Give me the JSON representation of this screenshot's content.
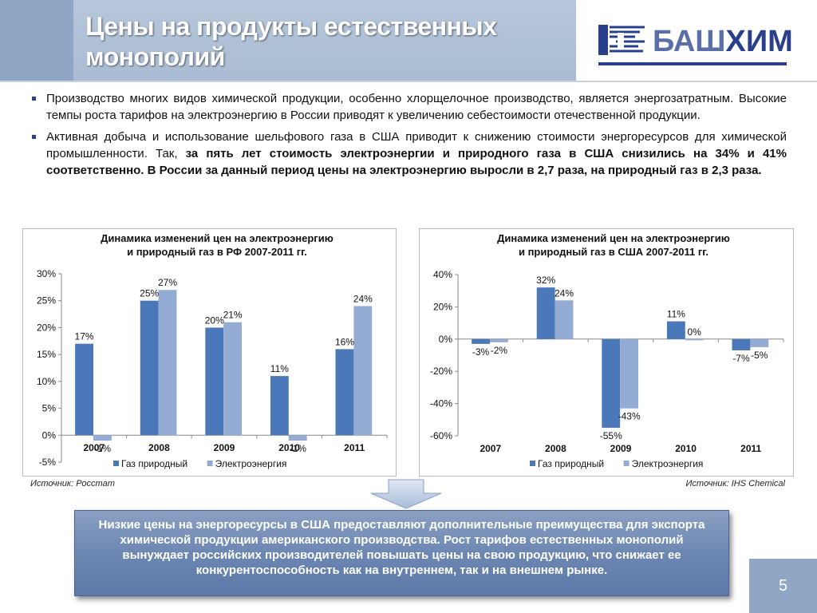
{
  "header": {
    "title": "Цены на продукты естественных монополий",
    "logo_text_part1": "БАШ",
    "logo_text_part2": "ХИМ"
  },
  "bullets": {
    "p1": "Производство многих видов химической продукции, особенно хлорщелочное производство, является энергозатратным. Высокие темпы роста тарифов на электроэнергию в России приводят к увеличению себестоимости отечественной продукции.",
    "p2_normal": "Активная добыча и использование шельфового газа в США приводит к снижению стоимости энергоресурсов для химической промышленности. Так, ",
    "p2_bold": "за пять лет стоимость электроэнергии и природного газа в США снизились на 34% и 41% соответственно. В России за данный период цены на электроэнергию выросли в 2,7 раза, на природный газ в 2,3 раза."
  },
  "chart_data": [
    {
      "type": "bar",
      "title": "Динамика изменений цен на электроэнергию и природный газ в РФ 2007-2011 гг.",
      "title_lines": [
        "Динамика изменений цен на электроэнергию",
        "и природный газ в РФ 2007-2011 гг."
      ],
      "categories": [
        "2007",
        "2008",
        "2009",
        "2010",
        "2011"
      ],
      "series": [
        {
          "name": "Газ природный",
          "color": "#4a78b8",
          "values": [
            17,
            25,
            20,
            11,
            16
          ],
          "labels": [
            "17%",
            "25%",
            "20%",
            "11%",
            "16%"
          ]
        },
        {
          "name": "Электроэнергия",
          "color": "#94acd4",
          "values": [
            -1,
            27,
            21,
            -1,
            24
          ],
          "labels": [
            "-1%",
            "27%",
            "21%",
            "-1%",
            "24%"
          ]
        }
      ],
      "ylim": [
        -5,
        30
      ],
      "yticks": [
        "30%",
        "25%",
        "20%",
        "15%",
        "10%",
        "5%",
        "0%",
        "-5%"
      ],
      "ytick_values": [
        30,
        25,
        20,
        15,
        10,
        5,
        0,
        -5
      ],
      "grid": false,
      "legend": "bottom"
    },
    {
      "type": "bar",
      "title": "Динамика изменений цен на электроэнергию и природный газ в США 2007-2011 гг.",
      "title_lines": [
        "Динамика изменений цен на электроэнергию",
        "и природный газ в США 2007-2011 гг."
      ],
      "categories": [
        "2007",
        "2008",
        "2009",
        "2010",
        "2011"
      ],
      "series": [
        {
          "name": "Газ природный",
          "color": "#4a78b8",
          "values": [
            -3,
            32,
            -55,
            11,
            -7
          ],
          "labels": [
            "-3%",
            "32%",
            "-55%",
            "11%",
            "-7%"
          ]
        },
        {
          "name": "Электроэнергия",
          "color": "#94acd4",
          "values": [
            -2,
            24,
            -43,
            0,
            -5
          ],
          "labels": [
            "-2%",
            "24%",
            "-43%",
            "0%",
            "-5%"
          ]
        }
      ],
      "ylim": [
        -60,
        40
      ],
      "yticks": [
        "40%",
        "20%",
        "0%",
        "-20%",
        "-40%",
        "-60%"
      ],
      "ytick_values": [
        40,
        20,
        0,
        -20,
        -40,
        -60
      ],
      "grid": false,
      "legend": "bottom"
    }
  ],
  "sources": {
    "left": "Источник: Росстат",
    "right": "Источник: IHS Chemical"
  },
  "conclusion": "Низкие цены на энергоресурсы в США предоставляют дополнительные преимущества для экспорта химической продукции американского производства. Рост тарифов естественных монополий вынуждает российских производителей повышать цены на свою продукцию, что снижает ее конкурентоспособность как на внутреннем, так и на внешнем рынке.",
  "page_number": "5"
}
